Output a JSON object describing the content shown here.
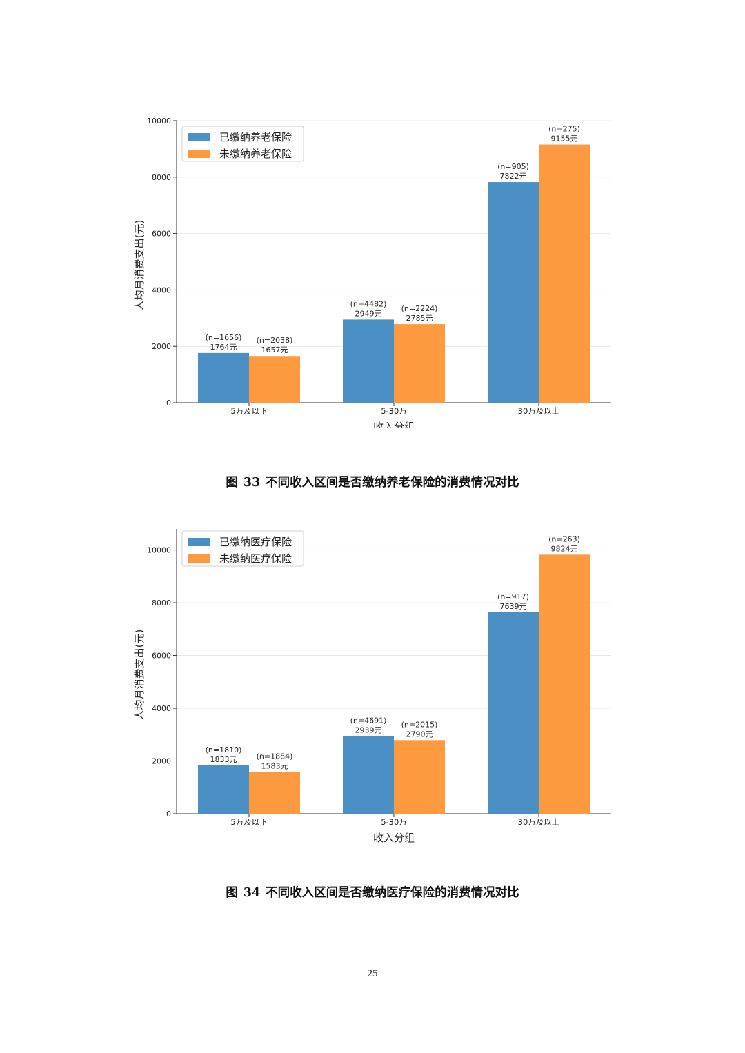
{
  "colors": {
    "paid": "#4a90c4",
    "unpaid": "#fd9a40",
    "axis": "#333333",
    "grid": "#e8e8e8"
  },
  "chart_data": [
    {
      "type": "bar",
      "xlabel": "收入分组",
      "ylabel": "人均月消费支出(元)",
      "categories": [
        "5万及以下",
        "5-30万",
        "30万及以上"
      ],
      "ylim": [
        0,
        10000
      ],
      "yticks": [
        "0",
        "2000",
        "4000",
        "6000",
        "8000",
        "10000"
      ],
      "legend_position": "top-left",
      "grid": "horizontal",
      "series": [
        {
          "name": "已缴纳养老保险",
          "values": [
            1764,
            2949,
            7822
          ],
          "n_labels": [
            "(n=1656)",
            "(n=4482)",
            "(n=905)"
          ],
          "value_labels": [
            "1764元",
            "2949元",
            "7822元"
          ]
        },
        {
          "name": "未缴纳养老保险",
          "values": [
            1657,
            2785,
            9155
          ],
          "n_labels": [
            "(n=2038)",
            "(n=2224)",
            "(n=275)"
          ],
          "value_labels": [
            "1657元",
            "2785元",
            "9155元"
          ]
        }
      ],
      "caption": {
        "label": "图",
        "number": "33",
        "text": "不同收入区间是否缴纳养老保险的消费情况对比"
      }
    },
    {
      "type": "bar",
      "xlabel": "收入分组",
      "ylabel": "人均月消费支出(元)",
      "categories": [
        "5万及以下",
        "5-30万",
        "30万及以上"
      ],
      "ylim": [
        0,
        10800
      ],
      "yticks": [
        "0",
        "2000",
        "4000",
        "6000",
        "8000",
        "10000"
      ],
      "legend_position": "top-left",
      "grid": "horizontal",
      "series": [
        {
          "name": "已缴纳医疗保险",
          "values": [
            1833,
            2939,
            7639
          ],
          "n_labels": [
            "(n=1810)",
            "(n=4691)",
            "(n=917)"
          ],
          "value_labels": [
            "1833元",
            "2939元",
            "7639元"
          ]
        },
        {
          "name": "未缴纳医疗保险",
          "values": [
            1583,
            2790,
            9824
          ],
          "n_labels": [
            "(n=1884)",
            "(n=2015)",
            "(n=263)"
          ],
          "value_labels": [
            "1583元",
            "2790元",
            "9824元"
          ]
        }
      ],
      "caption": {
        "label": "图",
        "number": "34",
        "text": "不同收入区间是否缴纳医疗保险的消费情况对比"
      }
    }
  ],
  "page_number": "25"
}
